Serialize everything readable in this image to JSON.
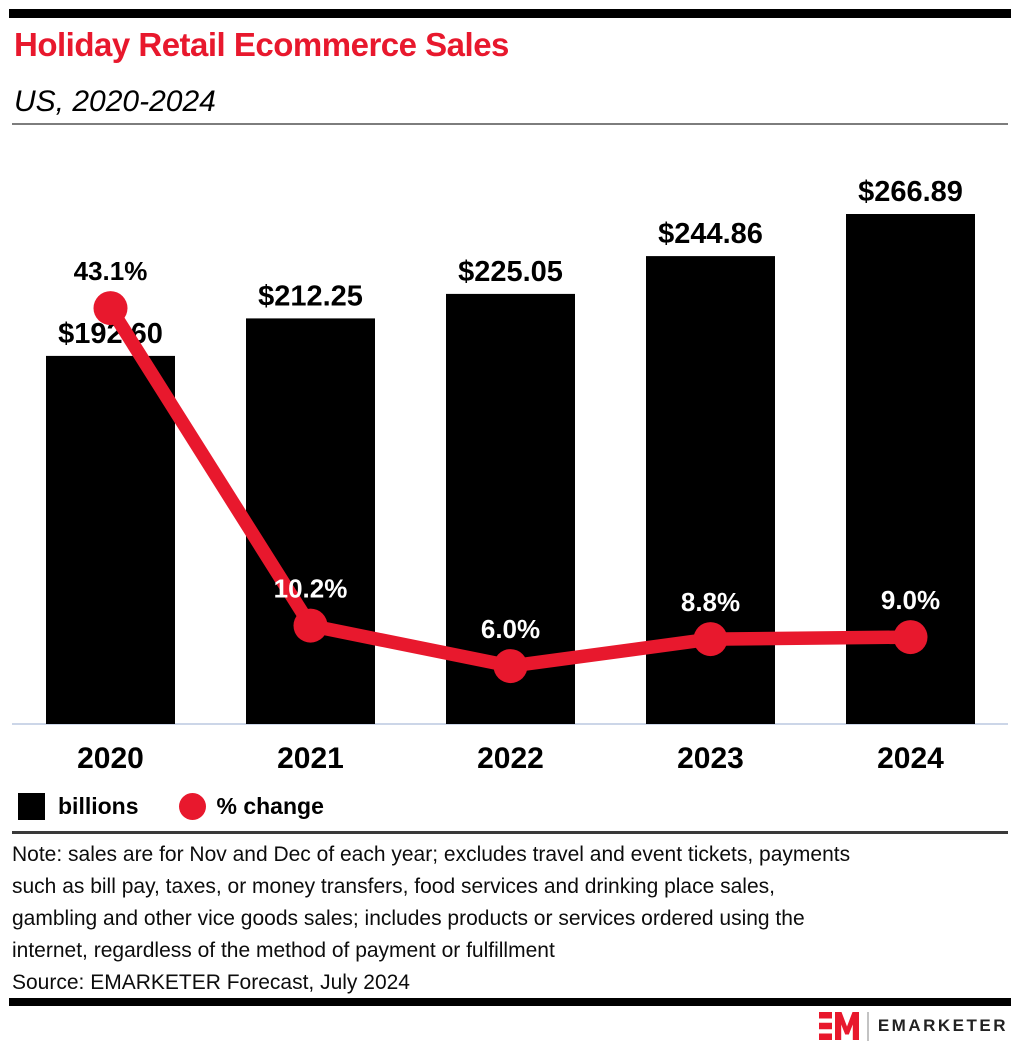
{
  "header": {
    "title": "Holiday Retail Ecommerce Sales",
    "subtitle": "US, 2020-2024"
  },
  "chart_data": {
    "type": "bar",
    "title": "Holiday Retail Ecommerce Sales",
    "subtitle": "US, 2020-2024",
    "categories": [
      "2020",
      "2021",
      "2022",
      "2023",
      "2024"
    ],
    "series": [
      {
        "name": "billions",
        "type": "bar",
        "color": "#000000",
        "values": [
          192.6,
          212.25,
          225.05,
          244.86,
          266.89
        ],
        "labels": [
          "$192.60",
          "$212.25",
          "$225.05",
          "$244.86",
          "$266.89"
        ]
      },
      {
        "name": "% change",
        "type": "line",
        "color": "#e8182d",
        "values": [
          43.1,
          10.2,
          6.0,
          8.8,
          9.0
        ],
        "labels": [
          "43.1%",
          "10.2%",
          "6.0%",
          "8.8%",
          "9.0%"
        ]
      }
    ],
    "xlabel": "",
    "ylabel": "",
    "value_axis_visible": false,
    "grid": false,
    "legend_position": "bottom-left",
    "axis_line_color": "#ccd6e8"
  },
  "legend": {
    "items": [
      {
        "label": "billions",
        "swatch": "black-square"
      },
      {
        "label": "% change",
        "swatch": "red-circle"
      }
    ]
  },
  "note": {
    "lines": [
      "Note: sales are for Nov and Dec of each year; excludes travel and event tickets, payments",
      "such as bill pay, taxes, or money transfers, food services and drinking place sales,",
      "gambling and other vice goods sales; includes products or services ordered using the",
      "internet, regardless of the method of payment or fulfillment"
    ]
  },
  "source": "Source: EMARKETER Forecast, July 2024",
  "footer": {
    "logo": "EM",
    "brand": "EMARKETER"
  },
  "colors": {
    "accent_red": "#e8182d",
    "bar_black": "#000000",
    "background": "#ffffff"
  }
}
